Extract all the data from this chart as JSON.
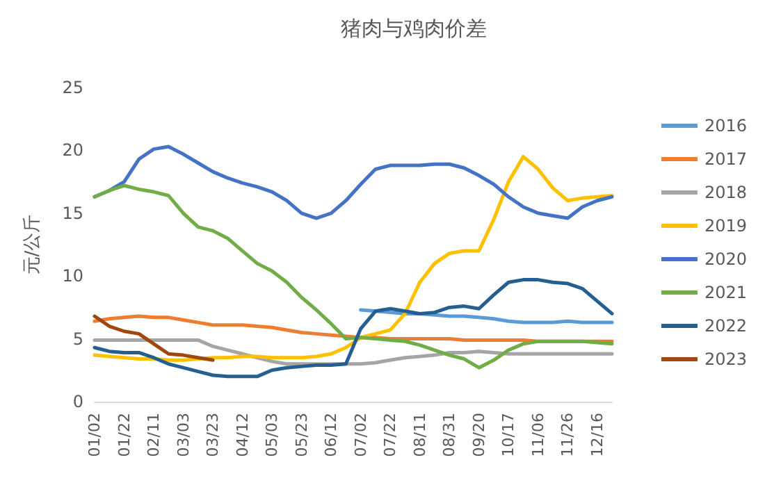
{
  "chart_data": {
    "type": "line",
    "title": "猪肉与鸡肉价差",
    "ylabel": "元/公斤",
    "categories": [
      "01/02",
      null,
      "01/22",
      null,
      "02/11",
      null,
      "03/03",
      null,
      "03/23",
      null,
      "04/12",
      null,
      "05/03",
      null,
      "05/23",
      null,
      "06/12",
      null,
      "07/02",
      null,
      "07/22",
      null,
      "08/11",
      null,
      "08/31",
      null,
      "09/20",
      null,
      "10/17",
      null,
      "11/06",
      null,
      "11/26",
      null,
      "12/16",
      null
    ],
    "ylim": [
      0,
      25
    ],
    "yticks": [
      0,
      5,
      10,
      15,
      20,
      25
    ],
    "grid": false,
    "legend": "right",
    "marker": "none",
    "line_style": "solid",
    "series": [
      {
        "name": "2016",
        "color": "#5b9bd5",
        "values": [
          null,
          null,
          null,
          null,
          null,
          null,
          null,
          null,
          null,
          null,
          null,
          null,
          null,
          null,
          null,
          null,
          null,
          null,
          7.3,
          7.2,
          7.1,
          7.0,
          7.0,
          6.9,
          6.8,
          6.8,
          6.7,
          6.6,
          6.4,
          6.3,
          6.3,
          6.3,
          6.4,
          6.3,
          6.3,
          6.3
        ]
      },
      {
        "name": "2017",
        "color": "#ed7d31",
        "values": [
          6.4,
          6.6,
          6.7,
          6.8,
          6.7,
          6.7,
          6.5,
          6.3,
          6.1,
          6.1,
          6.1,
          6.0,
          5.9,
          5.7,
          5.5,
          5.4,
          5.3,
          5.2,
          5.1,
          5.1,
          5.0,
          5.0,
          5.0,
          5.0,
          5.0,
          4.9,
          4.9,
          4.9,
          4.9,
          4.9,
          4.8,
          4.8,
          4.8,
          4.8,
          4.8,
          4.8
        ]
      },
      {
        "name": "2018",
        "color": "#a5a5a5",
        "values": [
          4.9,
          4.9,
          4.9,
          4.9,
          4.9,
          4.9,
          4.9,
          4.9,
          4.4,
          4.1,
          3.8,
          3.5,
          3.2,
          3.0,
          3.0,
          3.0,
          3.0,
          3.0,
          3.0,
          3.1,
          3.3,
          3.5,
          3.6,
          3.7,
          3.9,
          3.9,
          4.0,
          3.9,
          3.8,
          3.8,
          3.8,
          3.8,
          3.8,
          3.8,
          3.8,
          3.8
        ]
      },
      {
        "name": "2019",
        "color": "#ffc000",
        "values": [
          3.7,
          3.6,
          3.5,
          3.4,
          3.4,
          3.3,
          3.3,
          3.4,
          3.5,
          3.5,
          3.6,
          3.6,
          3.5,
          3.5,
          3.5,
          3.6,
          3.8,
          4.3,
          5.1,
          5.4,
          5.7,
          7.0,
          9.5,
          11.0,
          11.8,
          12.0,
          12.0,
          14.5,
          17.5,
          19.5,
          18.5,
          17.0,
          16.0,
          16.2,
          16.3,
          16.4
        ]
      },
      {
        "name": "2020",
        "color": "#4472c4",
        "values": [
          16.3,
          16.8,
          17.5,
          19.3,
          20.1,
          20.3,
          19.7,
          19.0,
          18.3,
          17.8,
          17.4,
          17.1,
          16.7,
          16.0,
          15.0,
          14.6,
          15.0,
          16.0,
          17.3,
          18.5,
          18.8,
          18.8,
          18.8,
          18.9,
          18.9,
          18.6,
          18.0,
          17.3,
          16.3,
          15.5,
          15.0,
          14.8,
          14.6,
          15.5,
          16.0,
          16.3
        ]
      },
      {
        "name": "2021",
        "color": "#70ad47",
        "values": [
          16.3,
          16.8,
          17.2,
          16.9,
          16.7,
          16.4,
          15.0,
          13.9,
          13.6,
          13.0,
          12.0,
          11.0,
          10.4,
          9.5,
          8.3,
          7.3,
          6.2,
          5.0,
          5.1,
          5.0,
          4.9,
          4.8,
          4.5,
          4.1,
          3.7,
          3.4,
          2.7,
          3.3,
          4.1,
          4.6,
          4.8,
          4.8,
          4.8,
          4.8,
          4.7,
          4.6
        ]
      },
      {
        "name": "2022",
        "color": "#255e91",
        "values": [
          4.3,
          4.0,
          3.9,
          3.9,
          3.5,
          3.0,
          2.7,
          2.4,
          2.1,
          2.0,
          2.0,
          2.0,
          2.5,
          2.7,
          2.8,
          2.9,
          2.9,
          3.0,
          5.8,
          7.2,
          7.4,
          7.2,
          7.0,
          7.1,
          7.5,
          7.6,
          7.4,
          8.5,
          9.5,
          9.7,
          9.7,
          9.5,
          9.4,
          9.0,
          8.0,
          7.0
        ]
      },
      {
        "name": "2023",
        "color": "#9e480e",
        "values": [
          6.8,
          6.0,
          5.6,
          5.4,
          4.6,
          3.8,
          3.7,
          3.5,
          3.3,
          null,
          null,
          null,
          null,
          null,
          null,
          null,
          null,
          null,
          null,
          null,
          null,
          null,
          null,
          null,
          null,
          null,
          null,
          null,
          null,
          null,
          null,
          null,
          null,
          null,
          null,
          null
        ]
      }
    ]
  }
}
